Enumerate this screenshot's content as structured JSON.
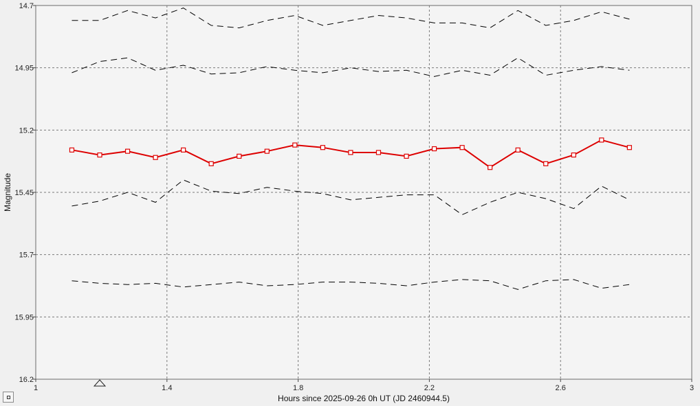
{
  "chart_data": {
    "type": "line",
    "xlabel": "Hours since 2025-09-26 0h UT (JD 2460944.5)",
    "ylabel": "Magnitude",
    "xlim": [
      1,
      3
    ],
    "ylim": [
      14.7,
      16.2
    ],
    "y_inverted": true,
    "grid": true,
    "legend": "none",
    "xticks": [
      "1",
      "1.4",
      "1.8",
      "2.2",
      "2.6",
      "3"
    ],
    "yticks": [
      "14.7",
      "14.95",
      "15.2",
      "15.45",
      "15.7",
      "15.95",
      "16.2"
    ],
    "x": [
      1.11,
      1.195,
      1.28,
      1.365,
      1.45,
      1.535,
      1.62,
      1.705,
      1.79,
      1.875,
      1.96,
      2.045,
      2.13,
      2.215,
      2.3,
      2.385,
      2.47,
      2.555,
      2.64,
      2.725,
      2.81
    ],
    "series": [
      {
        "color": "#000000",
        "style": "dashed",
        "values": [
          14.76,
          14.76,
          14.72,
          14.75,
          14.71,
          14.78,
          14.79,
          14.76,
          14.74,
          14.78,
          14.76,
          14.74,
          14.75,
          14.77,
          14.77,
          14.79,
          14.72,
          14.78,
          14.76,
          14.725,
          14.755
        ]
      },
      {
        "color": "#000000",
        "style": "dashed",
        "values": [
          14.97,
          14.925,
          14.91,
          14.96,
          14.94,
          14.975,
          14.97,
          14.945,
          14.96,
          14.97,
          14.95,
          14.965,
          14.96,
          14.985,
          14.96,
          14.98,
          14.91,
          14.98,
          14.96,
          14.945,
          14.96
        ]
      },
      {
        "color": "#dd0000",
        "style": "solid",
        "marker": "square",
        "values": [
          15.28,
          15.3,
          15.285,
          15.31,
          15.28,
          15.335,
          15.305,
          15.285,
          15.26,
          15.27,
          15.29,
          15.29,
          15.305,
          15.275,
          15.27,
          15.35,
          15.28,
          15.335,
          15.3,
          15.24,
          15.27
        ]
      },
      {
        "color": "#000000",
        "style": "dashed",
        "values": [
          15.505,
          15.485,
          15.45,
          15.49,
          15.4,
          15.445,
          15.455,
          15.43,
          15.445,
          15.455,
          15.48,
          15.47,
          15.46,
          15.46,
          15.54,
          15.49,
          15.45,
          15.475,
          15.515,
          15.425,
          15.48
        ]
      },
      {
        "color": "#000000",
        "style": "dashed",
        "values": [
          15.805,
          15.815,
          15.82,
          15.815,
          15.83,
          15.82,
          15.81,
          15.825,
          15.82,
          15.81,
          15.81,
          15.815,
          15.825,
          15.81,
          15.8,
          15.805,
          15.84,
          15.805,
          15.8,
          15.835,
          15.82
        ]
      }
    ],
    "marker_triangle_x": 1.195
  }
}
